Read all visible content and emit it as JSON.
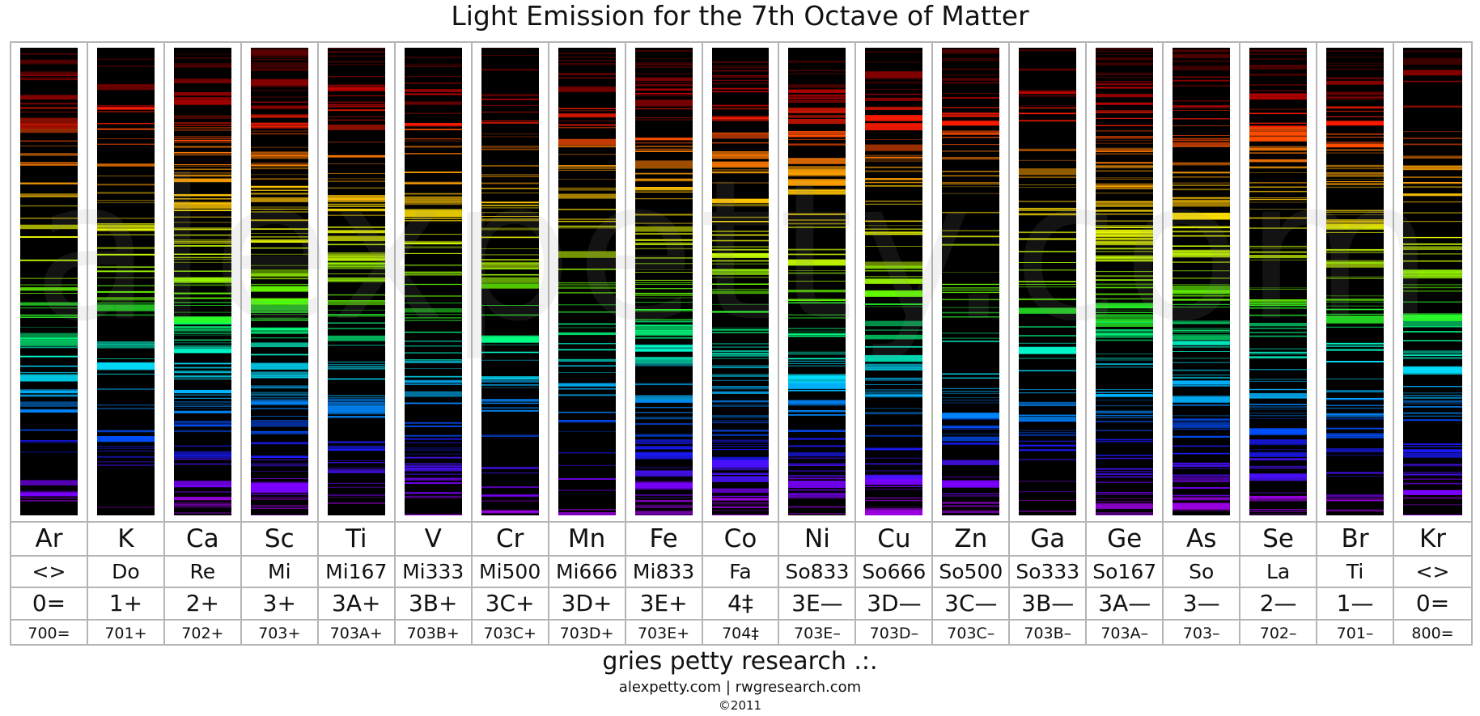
{
  "title": "Light Emission for the 7th Octave of Matter",
  "watermark": "alexpetty.com .:",
  "footer": {
    "org": "gries petty research .:.",
    "links": "alexpetty.com | rwgresearch.com",
    "copyright": "©2011"
  },
  "elements": [
    {
      "symbol": "Ar",
      "tone": "<>",
      "octave": "0=",
      "code": "700="
    },
    {
      "symbol": "K",
      "tone": "Do",
      "octave": "1+",
      "code": "701+"
    },
    {
      "symbol": "Ca",
      "tone": "Re",
      "octave": "2+",
      "code": "702+"
    },
    {
      "symbol": "Sc",
      "tone": "Mi",
      "octave": "3+",
      "code": "703+"
    },
    {
      "symbol": "Ti",
      "tone": "Mi167",
      "octave": "3A+",
      "code": "703A+"
    },
    {
      "symbol": "V",
      "tone": "Mi333",
      "octave": "3B+",
      "code": "703B+"
    },
    {
      "symbol": "Cr",
      "tone": "Mi500",
      "octave": "3C+",
      "code": "703C+"
    },
    {
      "symbol": "Mn",
      "tone": "Mi666",
      "octave": "3D+",
      "code": "703D+"
    },
    {
      "symbol": "Fe",
      "tone": "Mi833",
      "octave": "3E+",
      "code": "703E+"
    },
    {
      "symbol": "Co",
      "tone": "Fa",
      "octave": "4‡",
      "code": "704‡"
    },
    {
      "symbol": "Ni",
      "tone": "So833",
      "octave": "3E—",
      "code": "703E–"
    },
    {
      "symbol": "Cu",
      "tone": "So666",
      "octave": "3D—",
      "code": "703D–"
    },
    {
      "symbol": "Zn",
      "tone": "So500",
      "octave": "3C—",
      "code": "703C–"
    },
    {
      "symbol": "Ga",
      "tone": "So333",
      "octave": "3B—",
      "code": "703B–"
    },
    {
      "symbol": "Ge",
      "tone": "So167",
      "octave": "3A—",
      "code": "703A–"
    },
    {
      "symbol": "As",
      "tone": "So",
      "octave": "3—",
      "code": "703–"
    },
    {
      "symbol": "Se",
      "tone": "La",
      "octave": "2—",
      "code": "702–"
    },
    {
      "symbol": "Br",
      "tone": "Ti",
      "octave": "1—",
      "code": "701–"
    },
    {
      "symbol": "Kr",
      "tone": "<>",
      "octave": "0=",
      "code": "800="
    }
  ]
}
